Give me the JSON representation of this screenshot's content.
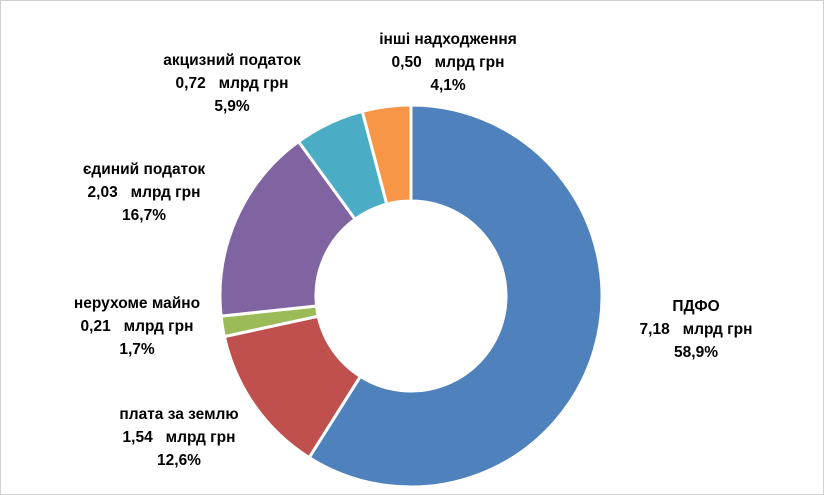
{
  "chart_data": {
    "type": "pie",
    "variant": "donut",
    "unit": "млрд грн",
    "slices": [
      {
        "label": "ПДФО",
        "value": 7.18,
        "value_text": "7,18",
        "percent": 58.9,
        "percent_text": "58,9%",
        "color": "#4F81BD"
      },
      {
        "label": "плата за землю",
        "value": 1.54,
        "value_text": "1,54",
        "percent": 12.6,
        "percent_text": "12,6%",
        "color": "#C0504D"
      },
      {
        "label": "нерухоме майно",
        "value": 0.21,
        "value_text": "0,21",
        "percent": 1.7,
        "percent_text": "1,7%",
        "color": "#9BBB59"
      },
      {
        "label": "єдиний податок",
        "value": 2.03,
        "value_text": "2,03",
        "percent": 16.7,
        "percent_text": "16,7%",
        "color": "#8064A2"
      },
      {
        "label": "акцизний податок",
        "value": 0.72,
        "value_text": "0,72",
        "percent": 5.9,
        "percent_text": "5,9%",
        "color": "#4BACC6"
      },
      {
        "label": "інші надходження",
        "value": 0.5,
        "value_text": "0,50",
        "percent": 4.1,
        "percent_text": "4,1%",
        "color": "#F79646"
      }
    ]
  }
}
